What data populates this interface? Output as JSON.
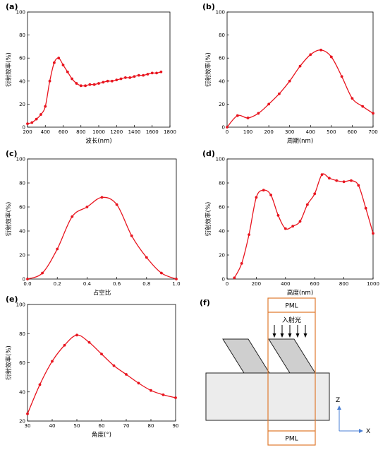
{
  "chart_data": [
    {
      "id": "a",
      "type": "line",
      "panel_label": "(a)",
      "xlabel": "波长(nm)",
      "ylabel": "衍射效率(%)",
      "xlim": [
        200,
        1800
      ],
      "ylim": [
        0,
        100
      ],
      "xticks": [
        200,
        400,
        600,
        800,
        1000,
        1200,
        1400,
        1600,
        1800
      ],
      "yticks": [
        0,
        20,
        40,
        60,
        80,
        100
      ],
      "grid": false,
      "color": "#e8141e",
      "series": [
        {
          "x": [
            200,
            250,
            300,
            350,
            400,
            450,
            500,
            550,
            600,
            650,
            700,
            750,
            800,
            850,
            900,
            950,
            1000,
            1050,
            1100,
            1150,
            1200,
            1250,
            1300,
            1350,
            1400,
            1450,
            1500,
            1550,
            1600,
            1650,
            1700
          ],
          "y": [
            3,
            4,
            7,
            11,
            18,
            40,
            56,
            60,
            54,
            48,
            42,
            38,
            36,
            36,
            37,
            37,
            38,
            39,
            40,
            40,
            41,
            42,
            43,
            43,
            44,
            45,
            45,
            46,
            47,
            47,
            48
          ]
        }
      ]
    },
    {
      "id": "b",
      "type": "line",
      "panel_label": "(b)",
      "xlabel": "周期(nm)",
      "ylabel": "衍射效率(%)",
      "xlim": [
        0,
        700
      ],
      "ylim": [
        0,
        100
      ],
      "xticks": [
        0,
        100,
        200,
        300,
        400,
        500,
        600,
        700
      ],
      "yticks": [
        0,
        20,
        40,
        60,
        80,
        100
      ],
      "grid": false,
      "color": "#e8141e",
      "series": [
        {
          "x": [
            0,
            50,
            100,
            150,
            200,
            250,
            300,
            350,
            400,
            450,
            500,
            550,
            600,
            650,
            700
          ],
          "y": [
            0,
            10,
            8,
            12,
            20,
            29,
            40,
            53,
            63,
            67,
            61,
            44,
            25,
            18,
            12
          ]
        }
      ]
    },
    {
      "id": "c",
      "type": "line",
      "panel_label": "(c)",
      "xlabel": "占空比",
      "ylabel": "衍射效率(%)",
      "xlim": [
        0.0,
        1.0
      ],
      "ylim": [
        0,
        100
      ],
      "xticks": [
        0.0,
        0.2,
        0.4,
        0.6,
        0.8,
        1.0
      ],
      "yticks": [
        0,
        20,
        40,
        60,
        80,
        100
      ],
      "grid": false,
      "color": "#e8141e",
      "series": [
        {
          "x": [
            0.0,
            0.1,
            0.2,
            0.3,
            0.4,
            0.5,
            0.6,
            0.7,
            0.8,
            0.9,
            1.0
          ],
          "y": [
            0,
            5,
            25,
            52,
            60,
            68,
            62,
            36,
            18,
            5,
            0
          ]
        }
      ]
    },
    {
      "id": "d",
      "type": "line",
      "panel_label": "(d)",
      "xlabel": "高度(nm)",
      "ylabel": "衍射效率(%)",
      "xlim": [
        0,
        1000
      ],
      "ylim": [
        0,
        100
      ],
      "xticks": [
        0,
        200,
        400,
        600,
        800,
        1000
      ],
      "yticks": [
        0,
        20,
        40,
        60,
        80,
        100
      ],
      "grid": false,
      "color": "#e8141e",
      "series": [
        {
          "x": [
            50,
            100,
            150,
            200,
            250,
            300,
            350,
            400,
            450,
            500,
            550,
            600,
            650,
            700,
            750,
            800,
            850,
            900,
            950,
            1000
          ],
          "y": [
            1,
            13,
            37,
            68,
            74,
            70,
            53,
            42,
            44,
            48,
            62,
            71,
            87,
            84,
            82,
            81,
            82,
            78,
            59,
            38
          ]
        }
      ]
    },
    {
      "id": "e",
      "type": "line",
      "panel_label": "(e)",
      "xlabel": "角度(°)",
      "ylabel": "衍射效率(%)",
      "xlim": [
        30,
        90
      ],
      "ylim": [
        20,
        100
      ],
      "xticks": [
        30,
        40,
        50,
        60,
        70,
        80,
        90
      ],
      "yticks": [
        20,
        40,
        60,
        80,
        100
      ],
      "grid": false,
      "color": "#e8141e",
      "series": [
        {
          "x": [
            30,
            35,
            40,
            45,
            50,
            55,
            60,
            65,
            70,
            75,
            80,
            85,
            90
          ],
          "y": [
            25,
            45,
            61,
            72,
            79,
            74,
            66,
            58,
            52,
            46,
            41,
            38,
            36
          ]
        }
      ]
    }
  ],
  "schematic": {
    "panel_label": "(f)",
    "pml_top": "PML",
    "pml_bottom": "PML",
    "light_label": "入射光",
    "z_axis": "Z",
    "x_axis": "X",
    "colors": {
      "frame": "#e07a2e",
      "substrate": "#ececec",
      "axis": "#4a7fd4"
    }
  }
}
